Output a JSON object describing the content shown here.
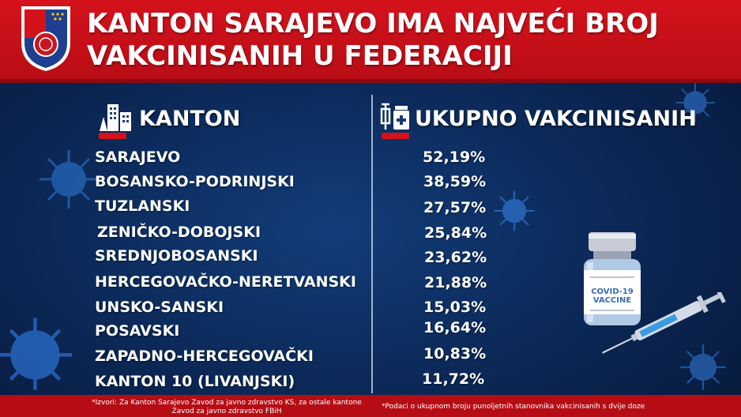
{
  "header": {
    "title_line1": "KANTON SARAJEVO IMA NAJVEĆI BROJ",
    "title_line2": "VAKCINISANIH U FEDERACIJI"
  },
  "table": {
    "col1_header": "KANTON",
    "col2_header": "UKUPNO VAKCINISANIH",
    "rows": [
      {
        "kanton": "SARAJEVO",
        "value": "52,19%"
      },
      {
        "kanton": "BOSANSKO-PODRINJSKI",
        "value": "38,59%"
      },
      {
        "kanton": "TUZLANSKI",
        "value": "27,57%"
      },
      {
        "kanton": "ZENIČKO-DOBOJSKI",
        "value": "25,84%"
      },
      {
        "kanton": "SREDNJOBOSANSKI",
        "value": "23,62%"
      },
      {
        "kanton": "HERCEGOVAČKO-NERETVANSKI",
        "value": "21,88%"
      },
      {
        "kanton": "UNSKO-SANSKI",
        "value": "15,03%"
      },
      {
        "kanton": "POSAVSKI",
        "value": "16,64%"
      },
      {
        "kanton": "ZAPADNO-HERCEGOVAČKI",
        "value": "10,83%"
      },
      {
        "kanton": "KANTON 10 (LIVANJSKI)",
        "value": "11,72%"
      }
    ]
  },
  "vaccine": {
    "label_line1": "COVID-19",
    "label_line2": "VACCINE"
  },
  "footer": {
    "sources_line1": "*Izvori: Za Kanton Sarajevo Zavod za javno zdravstvo KS, za ostale kantone",
    "sources_line2": "Zavod za javno zdravstvo FBiH",
    "note": "*Podaci o ukupnom broju punoljetnih stanovnika vakcinisanih s dvije doze"
  },
  "colors": {
    "header_red": "#d4121c",
    "background_blue": "#0c2a5a",
    "virus_blue": "#2f7fe0"
  },
  "icons": [
    "city-buildings-icon",
    "syringe-vial-icon",
    "virus-icon",
    "vaccine-vial-icon",
    "syringe-icon",
    "coat-of-arms-icon"
  ]
}
